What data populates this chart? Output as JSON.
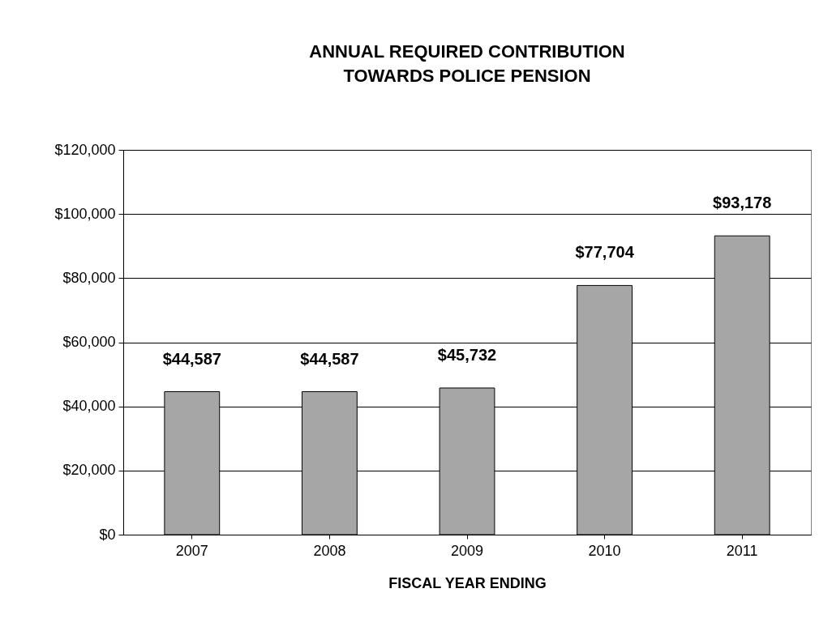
{
  "chart_data": {
    "type": "bar",
    "title": "ANNUAL REQUIRED CONTRIBUTION\nTOWARDS POLICE PENSION",
    "xlabel": "FISCAL YEAR ENDING",
    "categories": [
      "2007",
      "2008",
      "2009",
      "2010",
      "2011"
    ],
    "values": [
      44587,
      44587,
      45732,
      77704,
      93178
    ],
    "value_labels": [
      "$44,587",
      "$44,587",
      "$45,732",
      "$77,704",
      "$93,178"
    ],
    "color": "#a6a6a6",
    "ylim": [
      0,
      120000
    ],
    "yticks": [
      {
        "value": 0,
        "label": "$0"
      },
      {
        "value": 20000,
        "label": "$20,000"
      },
      {
        "value": 40000,
        "label": "$40,000"
      },
      {
        "value": 60000,
        "label": "$60,000"
      },
      {
        "value": 80000,
        "label": "$80,000"
      },
      {
        "value": 100000,
        "label": "$100,000"
      },
      {
        "value": 120000,
        "label": "$120,000"
      }
    ],
    "grid": "y"
  }
}
